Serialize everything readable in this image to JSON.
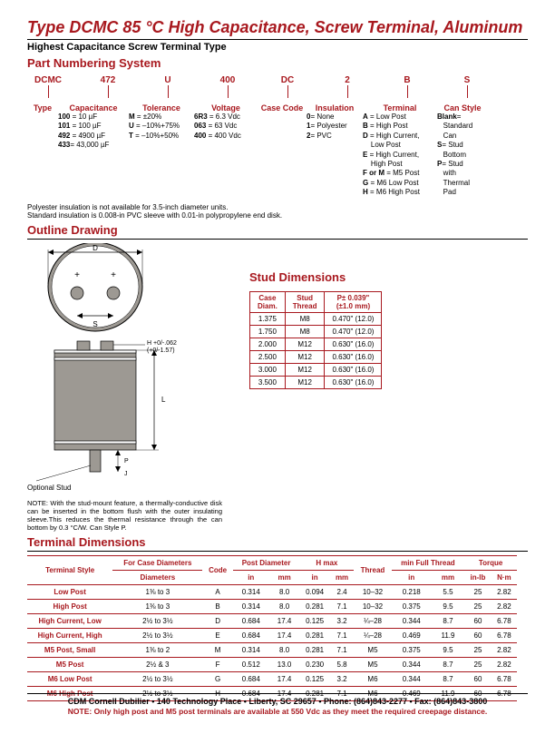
{
  "title": "Type DCMC 85 °C High Capacitance, Screw Terminal, Aluminum",
  "subtitle": "Highest Capacitance Screw Terminal Type",
  "sections": {
    "pn": "Part Numbering System",
    "outline": "Outline Drawing",
    "stud": "Stud Dimensions",
    "term": "Terminal Dimensions"
  },
  "pn_heads": [
    "DCMC",
    "472",
    "U",
    "400",
    "DC",
    "2",
    "B",
    "S"
  ],
  "pn_labels": [
    "Type",
    "Capacitance",
    "Tolerance",
    "Voltage",
    "Case Code",
    "Insulation",
    "Terminal",
    "Can Style"
  ],
  "pn_details": {
    "cap": [
      [
        "100",
        " = 10 µF"
      ],
      [
        "101",
        " = 100 µF"
      ],
      [
        "492",
        " = 4900 µF"
      ],
      [
        "433",
        "= 43,000 µF"
      ]
    ],
    "tol": [
      [
        "M",
        " = ±20%"
      ],
      [
        "U",
        " = –10%+75%"
      ],
      [
        "T",
        " = –10%+50%"
      ]
    ],
    "volt": [
      [
        "6R3",
        " = 6.3 Vdc"
      ],
      [
        "063",
        " = 63 Vdc"
      ],
      [
        "400",
        " = 400 Vdc"
      ]
    ],
    "ins": [
      [
        "0",
        "= None"
      ],
      [
        "1",
        "= Polyester"
      ],
      [
        "2",
        "= PVC"
      ]
    ],
    "term": [
      [
        "A",
        " = Low Post"
      ],
      [
        "B",
        " = High Post"
      ],
      [
        "D",
        " = High Current,"
      ],
      [
        "",
        "    Low Post"
      ],
      [
        "E",
        " = High Current,"
      ],
      [
        "",
        "    High Post"
      ],
      [
        "F or M",
        " = M5 Post"
      ],
      [
        "G",
        " = M6 Low Post"
      ],
      [
        "H",
        " = M6 High Post"
      ]
    ],
    "can": [
      [
        "Blank",
        "="
      ],
      [
        "",
        "Standard"
      ],
      [
        "",
        "Can"
      ],
      [
        "S",
        "= Stud"
      ],
      [
        "",
        "Bottom"
      ],
      [
        "P",
        "= Stud"
      ],
      [
        "",
        "with"
      ],
      [
        "",
        "Thermal"
      ],
      [
        "",
        "Pad"
      ]
    ]
  },
  "notes": {
    "n1": "Polyester insulation is not available for 3.5-inch diameter units.",
    "n2": "Standard insulation is 0.008-in PVC sleeve with 0.01-in polypropylene end disk."
  },
  "drawing_labels": {
    "D": "D",
    "S": "S",
    "L": "L",
    "P": "P",
    "J": "J",
    "H": "H +0/-.062",
    "Hmm": "(+0/-1.57)",
    "opt": "Optional Stud"
  },
  "caption": "NOTE: With the stud-mount feature, a thermally-conductive disk can be inserted in the bottom flush with the outer insulating sleeve.This reduces the thermal resistance through the can bottom by 0.3 °C/W. Can Style P.",
  "stud_table": {
    "headers": [
      "Case Diam.",
      "Stud Thread",
      "P± 0.039\" (±1.0 mm)"
    ],
    "rows": [
      [
        "1.375",
        "M8",
        "0.470\" (12.0)"
      ],
      [
        "1.750",
        "M8",
        "0.470\" (12.0)"
      ],
      [
        "2.000",
        "M12",
        "0.630\" (16.0)"
      ],
      [
        "2.500",
        "M12",
        "0.630\" (16.0)"
      ],
      [
        "3.000",
        "M12",
        "0.630\" (16.0)"
      ],
      [
        "3.500",
        "M12",
        "0.630\" (16.0)"
      ]
    ]
  },
  "term_table": {
    "group_headers": [
      "Terminal Style",
      "For Case Diameters",
      "Code",
      "Post Diameter",
      "H max",
      "Thread",
      "min Full Thread",
      "Torque"
    ],
    "sub_headers": [
      "",
      "",
      "",
      "in",
      "mm",
      "in",
      "mm",
      "",
      "in",
      "mm",
      "in-lb",
      "N·m"
    ],
    "rows": [
      [
        "Low Post",
        "1⅜ to 3",
        "A",
        "0.314",
        "8.0",
        "0.094",
        "2.4",
        "10–32",
        "0.218",
        "5.5",
        "25",
        "2.82"
      ],
      [
        "High Post",
        "1⅜ to 3",
        "B",
        "0.314",
        "8.0",
        "0.281",
        "7.1",
        "10–32",
        "0.375",
        "9.5",
        "25",
        "2.82"
      ],
      [
        "High Current, Low",
        "2½ to 3½",
        "D",
        "0.684",
        "17.4",
        "0.125",
        "3.2",
        "¼–28",
        "0.344",
        "8.7",
        "60",
        "6.78"
      ],
      [
        "High Current, High",
        "2½ to 3½",
        "E",
        "0.684",
        "17.4",
        "0.281",
        "7.1",
        "¼–28",
        "0.469",
        "11.9",
        "60",
        "6.78"
      ],
      [
        "M5 Post, Small",
        "1⅜ to 2",
        "M",
        "0.314",
        "8.0",
        "0.281",
        "7.1",
        "M5",
        "0.375",
        "9.5",
        "25",
        "2.82"
      ],
      [
        "M5 Post",
        "2½ & 3",
        "F",
        "0.512",
        "13.0",
        "0.230",
        "5.8",
        "M5",
        "0.344",
        "8.7",
        "25",
        "2.82"
      ],
      [
        "M6 Low Post",
        "2½ to 3½",
        "G",
        "0.684",
        "17.4",
        "0.125",
        "3.2",
        "M6",
        "0.344",
        "8.7",
        "60",
        "6.78"
      ],
      [
        "M6 High Post",
        "2½ to 3½",
        "H",
        "0.684",
        "17.4",
        "0.281",
        "7.1",
        "M6",
        "0.469",
        "11.9",
        "60",
        "6.78"
      ]
    ]
  },
  "footnote": "NOTE:  Only high post and M5 post terminals are available at 550 Vdc as they meet the required creepage distance.",
  "footer": "CDM Cornell Dubilier • 140 Technology Place • Liberty, SC 29657 • Phone: (864)843-2277 • Fax: (864)843-3800"
}
